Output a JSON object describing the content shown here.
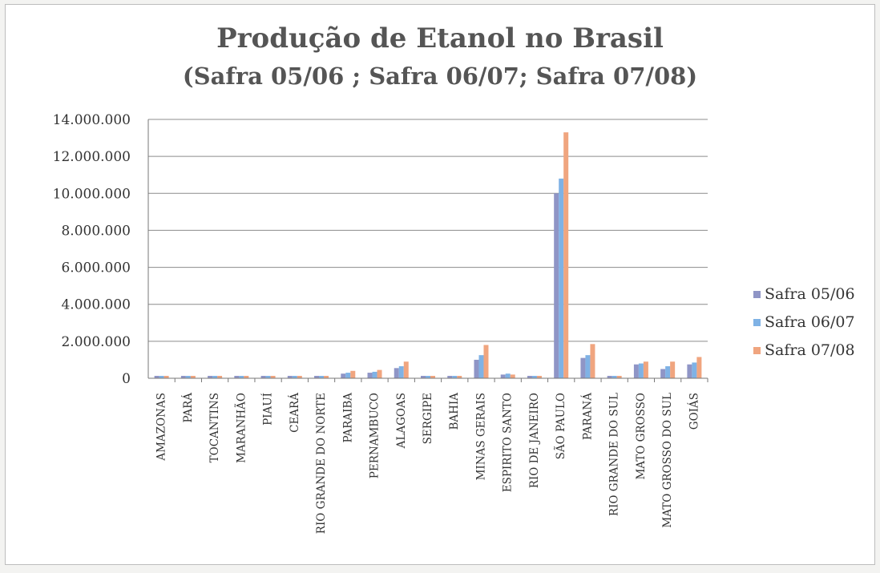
{
  "chart_data": {
    "type": "bar",
    "title": "Produção de Etanol no Brasil",
    "subtitle": "(Safra 05/06 ; Safra 06/07; Safra 07/08)",
    "xlabel": "",
    "ylabel": "",
    "ylim": [
      0,
      14000000
    ],
    "yticks": [
      "0",
      "2.000.000",
      "4.000.000",
      "6.000.000",
      "8.000.000",
      "10.000.000",
      "12.000.000",
      "14.000.000"
    ],
    "grid": true,
    "legend_position": "right",
    "categories": [
      "AMAZONAS",
      "PARÁ",
      "TOCANTINS",
      "MARANHÃO",
      "PIAUÍ",
      "CEARÁ",
      "RIO GRANDE DO NORTE",
      "PARAIBA",
      "PERNAMBUCO",
      "ALAGOAS",
      "SERGIPE",
      "BAHIA",
      "MINAS GERAIS",
      "ESPIRITO SANTO",
      "RIO DE JANEIRO",
      "SÃO PAULO",
      "PARANÁ",
      "RIO GRANDE DO SUL",
      "MATO GROSSO",
      "MATO GROSSO DO SUL",
      "GOIÁS"
    ],
    "series": [
      {
        "name": "Safra 05/06",
        "color": "#8f95c6",
        "values": [
          5000,
          30000,
          20000,
          20000,
          10000,
          5000,
          60000,
          250000,
          300000,
          550000,
          50000,
          60000,
          1000000,
          200000,
          60000,
          10000000,
          1100000,
          50000,
          750000,
          500000,
          750000
        ]
      },
      {
        "name": "Safra 06/07",
        "color": "#7fb2e5",
        "values": [
          6000,
          30000,
          25000,
          25000,
          10000,
          8000,
          70000,
          300000,
          350000,
          650000,
          60000,
          70000,
          1250000,
          250000,
          70000,
          10800000,
          1250000,
          60000,
          800000,
          650000,
          850000
        ]
      },
      {
        "name": "Safra 07/08",
        "color": "#f0a57f",
        "values": [
          8000,
          40000,
          30000,
          120000,
          10000,
          10000,
          80000,
          400000,
          450000,
          900000,
          80000,
          90000,
          1800000,
          200000,
          80000,
          13300000,
          1850000,
          80000,
          900000,
          900000,
          1150000
        ]
      }
    ]
  }
}
